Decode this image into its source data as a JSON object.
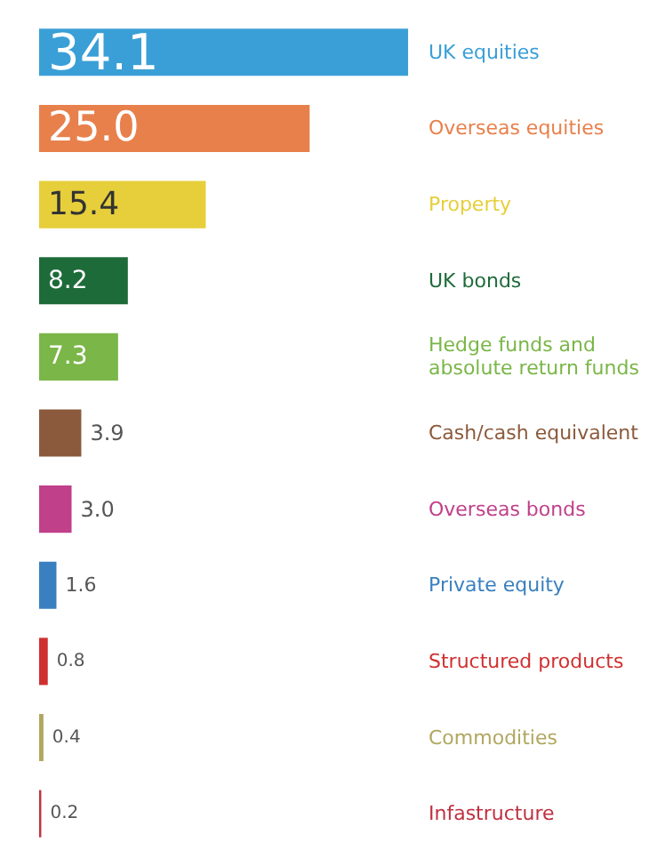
{
  "chart_data": {
    "type": "bar",
    "orientation": "horizontal",
    "value_labels": [
      "34.1",
      "25.0",
      "15.4",
      "8.2",
      "7.3",
      "3.9",
      "3.0",
      "1.6",
      "0.8",
      "0.4",
      "0.2"
    ],
    "categories": [
      "UK equities",
      "Overseas equities",
      "Property",
      "UK bonds",
      "Hedge funds and absolute return funds",
      "Cash/cash equivalent",
      "Overseas bonds",
      "Private equity",
      "Structured products",
      "Commodities",
      "Infastructure"
    ],
    "values": [
      34.1,
      25.0,
      15.4,
      8.2,
      7.3,
      3.9,
      3.0,
      1.6,
      0.8,
      0.4,
      0.2
    ],
    "colors": [
      "#3a9fd6",
      "#e8804c",
      "#e6cf3a",
      "#1e6b3a",
      "#7ab648",
      "#8b5a3c",
      "#c0408a",
      "#3a80c0",
      "#d03030",
      "#b0a860",
      "#c03040"
    ]
  }
}
